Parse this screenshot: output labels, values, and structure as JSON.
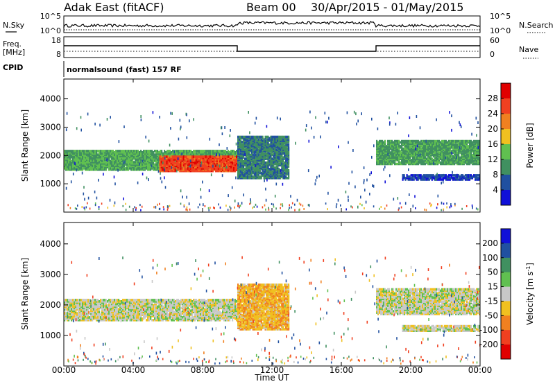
{
  "header": {
    "station": "Adak East (fitACF)",
    "beam": "Beam 00",
    "dates": "30/Apr/2015 - 01/May/2015"
  },
  "panels": {
    "noise": {
      "left_label": "N.Sky",
      "right_label": "N.Search",
      "left_ticks": [
        "10^5",
        "10^0"
      ],
      "right_ticks": [
        "10^5",
        "10^0"
      ]
    },
    "freq": {
      "left_label": "Freq.",
      "left_unit": "[MHz]",
      "right_label": "Nave",
      "left_ticks": [
        "18",
        "8"
      ],
      "right_ticks": [
        "60",
        "0"
      ]
    },
    "cpid": {
      "label": "CPID",
      "text": "normalsound (fast) 157 RF"
    }
  },
  "x_axis": {
    "label": "Time UT",
    "ticks": [
      "00:00",
      "04:00",
      "08:00",
      "12:00",
      "16:00",
      "20:00",
      "00:00"
    ]
  },
  "colors": {
    "power": [
      "#1010d8",
      "#2050a0",
      "#409060",
      "#60c050",
      "#f0c020",
      "#f08020",
      "#f04020",
      "#e00000"
    ],
    "velocity": [
      "#e00000",
      "#f04020",
      "#f08020",
      "#f0c020",
      "#c8c8c8",
      "#60c050",
      "#409060",
      "#2050a0",
      "#1010d8"
    ]
  },
  "chart_data": [
    {
      "type": "heatmap",
      "title": "",
      "xlabel": "Time UT",
      "ylabel": "Slant Range [km]",
      "ylim": [
        0,
        4700
      ],
      "xlim_hours": [
        0,
        24
      ],
      "y_ticks": [
        "1000",
        "2000",
        "3000",
        "4000"
      ],
      "colorbar": {
        "label": "Power [dB]",
        "range": [
          0,
          32
        ],
        "ticks": [
          "4",
          "8",
          "12",
          "16",
          "20",
          "24",
          "28"
        ]
      },
      "bands": [
        {
          "t_start": 0,
          "t_end": 10,
          "range_start": 1500,
          "range_end": 2200,
          "value": 12
        },
        {
          "t_start": 5.5,
          "t_end": 10,
          "range_start": 1450,
          "range_end": 2000,
          "value": 26
        },
        {
          "t_start": 10,
          "t_end": 13,
          "range_start": 1200,
          "range_end": 2700,
          "value": 9
        },
        {
          "t_start": 18,
          "t_end": 24,
          "range_start": 1700,
          "range_end": 2550,
          "value": 11
        },
        {
          "t_start": 19.5,
          "t_end": 24,
          "range_start": 1150,
          "range_end": 1350,
          "value": 5
        }
      ]
    },
    {
      "type": "heatmap",
      "title": "",
      "xlabel": "Time UT",
      "ylabel": "Slant Range [km]",
      "ylim": [
        0,
        4700
      ],
      "xlim_hours": [
        0,
        24
      ],
      "y_ticks": [
        "1000",
        "2000",
        "3000",
        "4000"
      ],
      "colorbar": {
        "label": "Velocity [m s^-1]",
        "ticks": [
          "200",
          "100",
          "50",
          "15",
          "-15",
          "-50",
          "-100",
          "-200"
        ]
      },
      "bands": [
        {
          "t_start": 0,
          "t_end": 10,
          "range_start": 1500,
          "range_end": 2200,
          "value": 0
        },
        {
          "t_start": 10,
          "t_end": 13,
          "range_start": 1200,
          "range_end": 2700,
          "value": -40
        },
        {
          "t_start": 18,
          "t_end": 24,
          "range_start": 1700,
          "range_end": 2550,
          "value": 0
        },
        {
          "t_start": 19.5,
          "t_end": 24,
          "range_start": 1150,
          "range_end": 1350,
          "value": 0
        }
      ]
    }
  ]
}
